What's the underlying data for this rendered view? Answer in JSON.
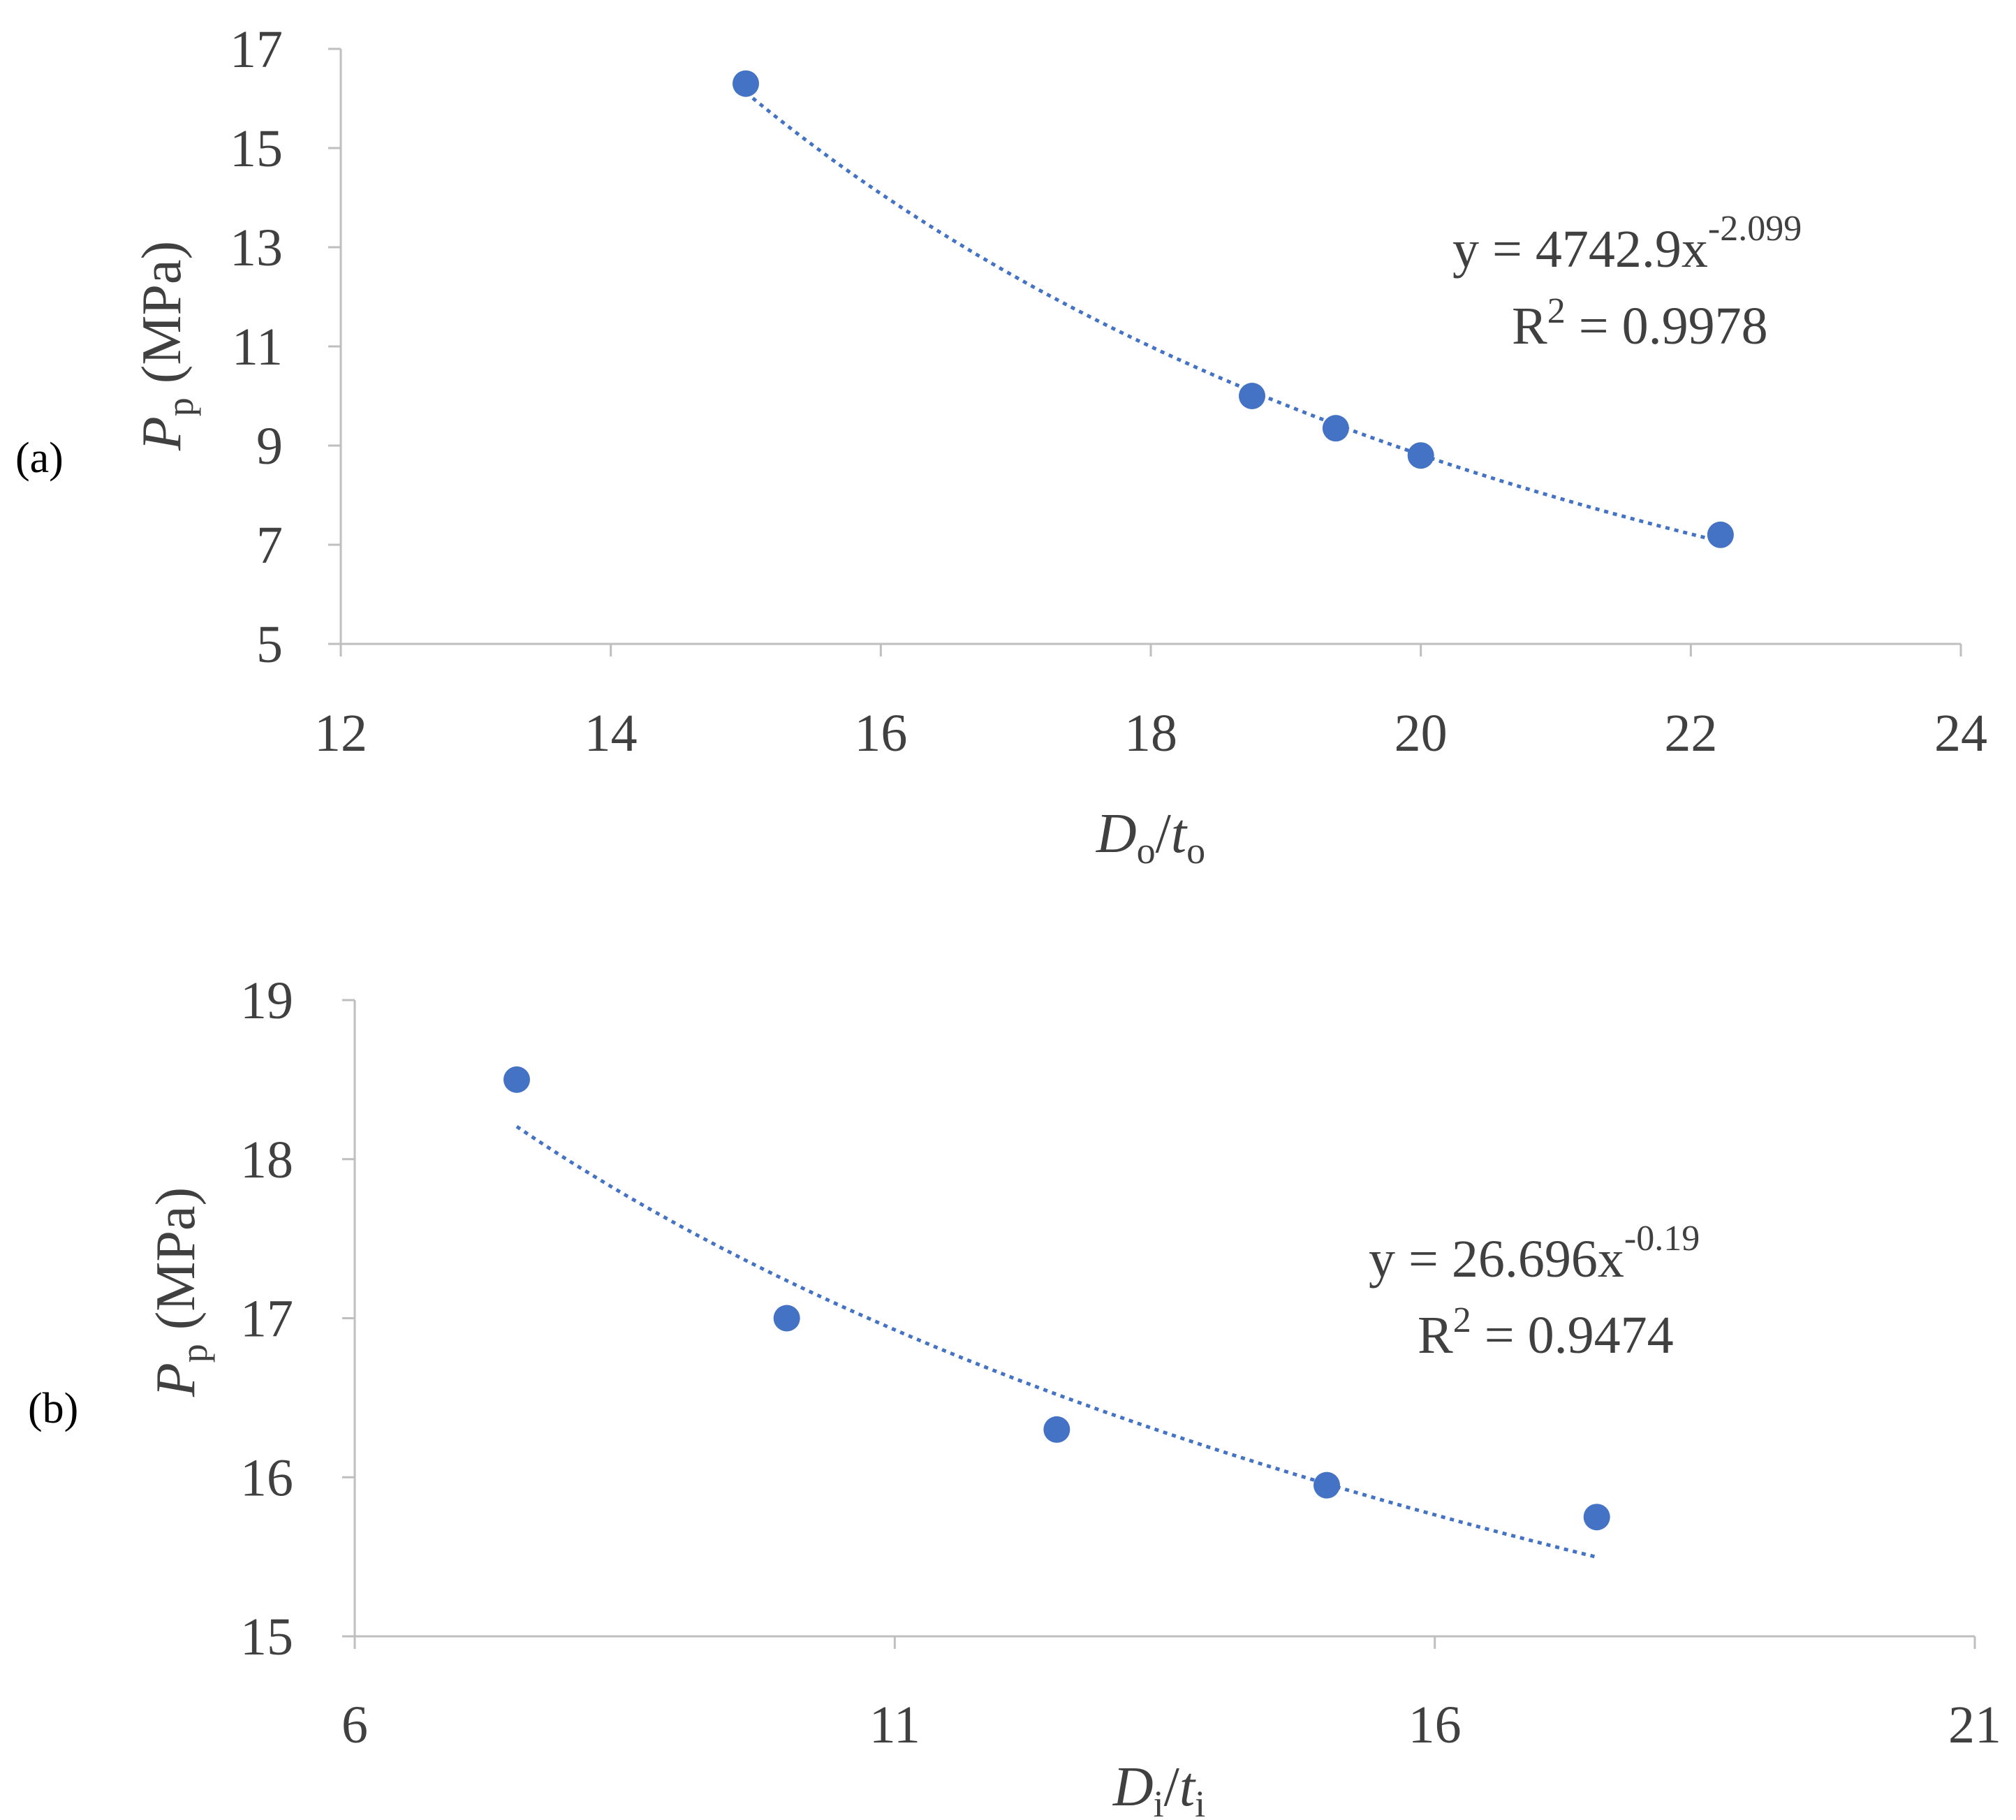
{
  "chart_data": [
    {
      "id": "a",
      "type": "scatter",
      "panel_label": "(a)",
      "x_label_main": "D",
      "x_label_sub": "o",
      "x_label_sep": "/",
      "x_label_main2": "t",
      "x_label_sub2": "o",
      "y_label_main": "P",
      "y_label_sub": "p",
      "y_label_unit": " (MPa)",
      "xlim": [
        12,
        24
      ],
      "ylim": [
        5,
        17
      ],
      "xticks": [
        12,
        14,
        16,
        18,
        20,
        22,
        24
      ],
      "yticks": [
        5,
        7,
        9,
        11,
        13,
        15,
        17
      ],
      "points": [
        {
          "x": 15.0,
          "y": 16.3
        },
        {
          "x": 18.75,
          "y": 10.0
        },
        {
          "x": 19.37,
          "y": 9.35
        },
        {
          "x": 20.0,
          "y": 8.8
        },
        {
          "x": 22.22,
          "y": 7.2
        }
      ],
      "trendline": {
        "type": "power",
        "a": 4742.9,
        "b": -2.099,
        "x_range": [
          15.0,
          22.22
        ]
      },
      "equation": {
        "lhs": "y = 4742.9x",
        "exp": "-2.099",
        "r2_label": "R",
        "r2_sup": "2",
        "r2_value": " = 0.9978"
      },
      "colors": {
        "marker": "#4472c4",
        "trend": "#4472c4"
      }
    },
    {
      "id": "b",
      "type": "scatter",
      "panel_label": "(b)",
      "x_label_main": "D",
      "x_label_sub": "i",
      "x_label_sep": "/",
      "x_label_main2": "t",
      "x_label_sub2": "i",
      "y_label_main": "P",
      "y_label_sub": "p",
      "y_label_unit": " (MPa)",
      "xlim": [
        6,
        21
      ],
      "ylim": [
        15,
        19
      ],
      "xticks": [
        6,
        11,
        16,
        21
      ],
      "yticks": [
        15,
        16,
        17,
        18,
        19
      ],
      "points": [
        {
          "x": 7.5,
          "y": 18.5
        },
        {
          "x": 10.0,
          "y": 17.0
        },
        {
          "x": 12.5,
          "y": 16.3
        },
        {
          "x": 15.0,
          "y": 15.95
        },
        {
          "x": 17.5,
          "y": 15.75
        }
      ],
      "trendline": {
        "type": "power",
        "a": 26.696,
        "b": -0.19,
        "x_range": [
          7.5,
          17.5
        ]
      },
      "equation": {
        "lhs": "y = 26.696x",
        "exp": "-0.19",
        "r2_label": "R",
        "r2_sup": "2",
        "r2_value": " = 0.9474"
      },
      "colors": {
        "marker": "#4472c4",
        "trend": "#4472c4"
      }
    }
  ]
}
